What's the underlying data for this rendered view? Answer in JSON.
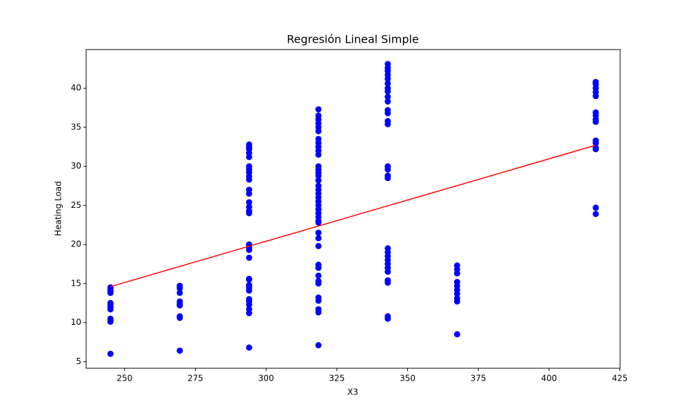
{
  "chart_data": {
    "type": "scatter",
    "title": "Regresión Lineal Simple",
    "x_label": "X3",
    "y_label": "Heating Load",
    "xlim": [
      236.4,
      425.1
    ],
    "ylim": [
      4.15,
      44.95
    ],
    "xticks": [
      250,
      275,
      300,
      325,
      350,
      375,
      400,
      425
    ],
    "yticks": [
      5,
      10,
      15,
      20,
      25,
      30,
      35,
      40
    ],
    "grid": false,
    "series": [
      {
        "type": "scatter",
        "color": "#0000ff",
        "x": [
          245,
          245,
          245,
          245,
          245,
          245,
          245,
          245,
          245,
          245,
          245,
          245,
          269.5,
          269.5,
          269.5,
          269.5,
          269.5,
          269.5,
          269.5,
          269.5,
          269.5,
          294,
          294,
          294,
          294,
          294,
          294,
          294,
          294,
          294,
          294,
          294,
          294,
          294,
          294,
          294,
          294,
          294,
          294,
          294,
          294,
          294,
          294,
          294,
          294,
          294,
          294,
          294,
          294,
          294,
          294,
          294,
          318.5,
          318.5,
          318.5,
          318.5,
          318.5,
          318.5,
          318.5,
          318.5,
          318.5,
          318.5,
          318.5,
          318.5,
          318.5,
          318.5,
          318.5,
          318.5,
          318.5,
          318.5,
          318.5,
          318.5,
          318.5,
          318.5,
          318.5,
          318.5,
          318.5,
          318.5,
          318.5,
          318.5,
          318.5,
          318.5,
          318.5,
          318.5,
          318.5,
          318.5,
          318.5,
          318.5,
          318.5,
          318.5,
          318.5,
          318.5,
          343,
          343,
          343,
          343,
          343,
          343,
          343,
          343,
          343,
          343,
          343,
          343,
          343,
          343,
          343,
          343,
          343,
          343,
          343,
          343,
          343,
          343,
          343,
          343,
          343,
          343,
          343,
          343,
          343,
          367.5,
          367.5,
          367.5,
          367.5,
          367.5,
          367.5,
          367.5,
          367.5,
          367.5,
          367.5,
          416.5,
          416.5,
          416.5,
          416.5,
          416.5,
          416.5,
          416.5,
          416.5,
          416.5,
          416.5,
          416.5,
          416.5,
          416.5,
          416.5,
          416.5
        ],
        "values": [
          14.5,
          14.3,
          14.0,
          13.8,
          12.5,
          12.2,
          12.0,
          11.7,
          10.5,
          10.3,
          10.1,
          6.0,
          14.7,
          14.4,
          13.8,
          12.7,
          12.4,
          12.2,
          10.8,
          10.6,
          6.4,
          32.8,
          32.5,
          32.2,
          31.7,
          31.2,
          30.0,
          29.6,
          29.2,
          28.7,
          28.3,
          27.0,
          26.5,
          25.4,
          24.8,
          24.3,
          24.0,
          20.0,
          19.6,
          19.3,
          18.3,
          15.6,
          15.5,
          14.8,
          14.5,
          14.1,
          13.0,
          12.7,
          12.3,
          11.7,
          11.2,
          6.8,
          37.3,
          36.5,
          36.0,
          35.5,
          35.0,
          34.5,
          33.5,
          33.0,
          32.5,
          32.0,
          31.5,
          30.0,
          29.6,
          29.2,
          28.8,
          28.2,
          27.5,
          27.0,
          26.5,
          26.0,
          25.5,
          25.0,
          24.5,
          24.0,
          23.5,
          23.0,
          22.8,
          21.5,
          20.8,
          19.8,
          17.4,
          17.0,
          16.0,
          15.3,
          15.0,
          13.2,
          12.8,
          11.7,
          11.3,
          7.1,
          43.1,
          42.6,
          42.2,
          41.7,
          41.2,
          40.6,
          40.0,
          39.6,
          38.9,
          38.3,
          37.2,
          36.8,
          35.8,
          35.4,
          30.0,
          29.6,
          28.8,
          28.5,
          19.5,
          19.0,
          18.5,
          18.0,
          17.5,
          17.0,
          16.5,
          15.4,
          15.1,
          10.8,
          10.5,
          17.3,
          16.8,
          16.3,
          15.2,
          14.7,
          14.2,
          13.7,
          13.1,
          12.7,
          8.5,
          40.8,
          40.5,
          40.0,
          39.5,
          39.0,
          36.9,
          36.5,
          36.0,
          35.7,
          33.3,
          33.0,
          32.4,
          32.2,
          24.7,
          23.9
        ]
      },
      {
        "type": "line",
        "color": "#ff0000",
        "x": [
          245,
          416.5
        ],
        "values": [
          14.6,
          32.7
        ]
      }
    ]
  }
}
